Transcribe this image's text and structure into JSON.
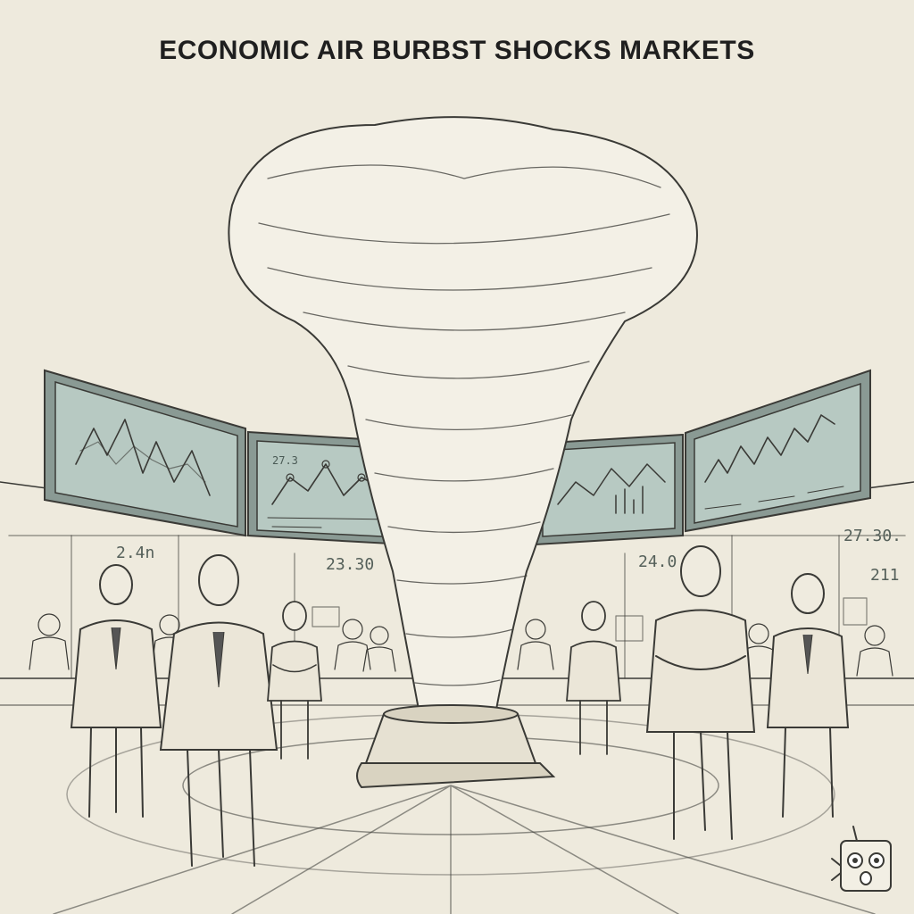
{
  "headline": "ECONOMIC AIR BURBST SHOCKS MARKETS",
  "screens": [
    {
      "id": "screen-1",
      "labels": []
    },
    {
      "id": "screen-2",
      "labels": [
        "27.3"
      ]
    },
    {
      "id": "screen-3",
      "labels": []
    },
    {
      "id": "screen-4",
      "labels": []
    }
  ],
  "wall_readouts": {
    "left_top": "2.4n",
    "center_left": "23.30",
    "center_right": "24.0",
    "right_top": "27.30.",
    "right_bottom": "211"
  },
  "colors": {
    "paper": "#eeeadd",
    "screen_fill": "#b7c9c2",
    "ink": "#3a3a36"
  },
  "icons": [
    "robot-mascot-icon"
  ]
}
